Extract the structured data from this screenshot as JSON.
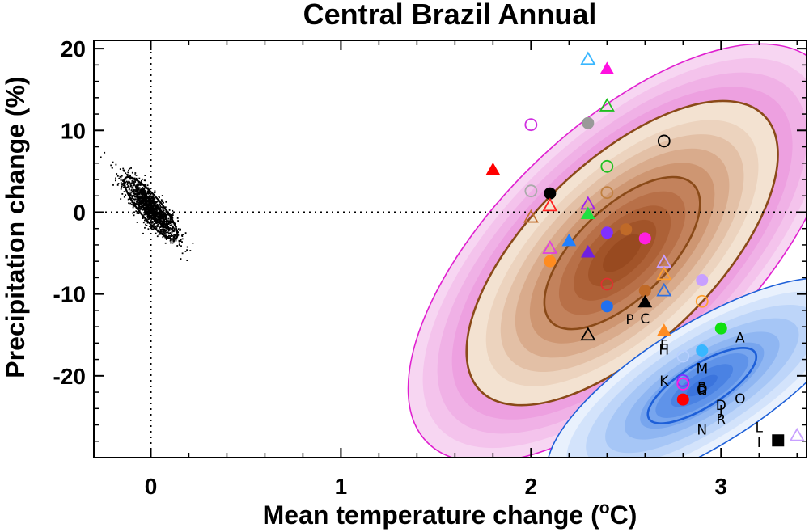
{
  "chart_data": {
    "type": "scatter",
    "title": "Central Brazil Annual",
    "xlabel_main": "Mean temperature change (",
    "xlabel_sup": "o",
    "xlabel_tail": "C)",
    "ylabel": "Precipitation change (%)",
    "xlim": [
      -0.3,
      3.45
    ],
    "ylim": [
      -30,
      21
    ],
    "xticks": [
      0,
      1,
      2,
      3
    ],
    "yticks": [
      20,
      10,
      0,
      -10,
      -20
    ],
    "reference_lines": {
      "x": 0,
      "y": 0,
      "style": "dotted"
    },
    "natural_variability": {
      "name": "natural variability cloud",
      "center": [
        0.0,
        0.5
      ],
      "sd_x": 0.07,
      "sd_y": 1.9,
      "correlation": -0.85,
      "n_points": 1400,
      "contours_sigma": [
        1.0,
        2.0
      ]
    },
    "distributions": [
      {
        "name": "CMIP3 (brown, magenta outer)",
        "center": [
          2.48,
          -5.0
        ],
        "semi_major": 0.65,
        "semi_minor": 0.3,
        "angle_deg": -44,
        "fill_scales": [
          2.2,
          2.05,
          1.9,
          1.75,
          1.6,
          1.4,
          1.25,
          1.1,
          0.95,
          0.8,
          0.65,
          0.5,
          0.35,
          0.2
        ],
        "fill_colors": [
          "#f7d6f2",
          "#f4c3ec",
          "#f0b1e6",
          "#eda0e0",
          "#f3e2d1",
          "#ecd3be",
          "#e3c0a6",
          "#d9ab8c",
          "#ce9672",
          "#c3825c",
          "#b87048",
          "#ad6137",
          "#a25429",
          "#984a20"
        ],
        "contour_colors": [
          "#e020d0",
          "#8a4a18",
          "#8a4a18"
        ],
        "contour_scales": [
          2.2,
          1.6,
          0.8
        ]
      },
      {
        "name": "CMIP5 (blue)",
        "center": [
          2.9,
          -21.2
        ],
        "semi_major": 0.47,
        "semi_minor": 0.16,
        "angle_deg": -32,
        "fill_scales": [
          2.0,
          1.75,
          1.5,
          1.25,
          1.0,
          0.8,
          0.6,
          0.4,
          0.2
        ],
        "fill_colors": [
          "#e9f1fd",
          "#d3e3fb",
          "#bdd5f9",
          "#a6c6f6",
          "#8fb6f2",
          "#77a5ee",
          "#5f93e9",
          "#4a82e3",
          "#3b74dd"
        ],
        "contour_colors": [
          "#1d5fd8",
          "#1d5fd8"
        ],
        "contour_scales": [
          2.0,
          0.7
        ]
      }
    ],
    "markers": [
      {
        "x": 2.3,
        "y": 18.7,
        "shape": "triangle",
        "fill": "none",
        "color": "#38b6ff"
      },
      {
        "x": 2.4,
        "y": 17.5,
        "shape": "triangle",
        "fill": "#ff10e0",
        "color": "#ff10e0"
      },
      {
        "x": 2.4,
        "y": 13.0,
        "shape": "triangle",
        "fill": "none",
        "color": "#20c020"
      },
      {
        "x": 2.3,
        "y": 10.9,
        "shape": "circle",
        "fill": "#999999",
        "color": "#999999"
      },
      {
        "x": 2.0,
        "y": 10.7,
        "shape": "circle",
        "fill": "none",
        "color": "#d030e0"
      },
      {
        "x": 2.7,
        "y": 8.7,
        "shape": "circle",
        "fill": "none",
        "color": "#000000"
      },
      {
        "x": 2.4,
        "y": 5.6,
        "shape": "circle",
        "fill": "none",
        "color": "#20c020"
      },
      {
        "x": 1.8,
        "y": 5.2,
        "shape": "triangle",
        "fill": "#ff0000",
        "color": "#ff0000"
      },
      {
        "x": 2.0,
        "y": 2.6,
        "shape": "circle",
        "fill": "none",
        "color": "#aaaaaa"
      },
      {
        "x": 2.1,
        "y": 2.3,
        "shape": "circle",
        "fill": "#000000",
        "color": "#000000"
      },
      {
        "x": 2.4,
        "y": 2.4,
        "shape": "circle",
        "fill": "none",
        "color": "#c08040"
      },
      {
        "x": 2.1,
        "y": 0.8,
        "shape": "triangle",
        "fill": "none",
        "color": "#ff2020"
      },
      {
        "x": 2.3,
        "y": 1.0,
        "shape": "triangle",
        "fill": "none",
        "color": "#a020f0"
      },
      {
        "x": 2.0,
        "y": -0.6,
        "shape": "triangle",
        "fill": "none",
        "color": "#c07030"
      },
      {
        "x": 2.3,
        "y": -0.2,
        "shape": "triangle",
        "fill": "#20e040",
        "color": "#20e040"
      },
      {
        "x": 2.4,
        "y": -2.5,
        "shape": "circle",
        "fill": "#8030ff",
        "color": "#8030ff"
      },
      {
        "x": 2.5,
        "y": -2.1,
        "shape": "circle",
        "fill": "#c06a28",
        "color": "#c06a28"
      },
      {
        "x": 2.6,
        "y": -3.2,
        "shape": "circle",
        "fill": "#ff20e0",
        "color": "#ff20e0"
      },
      {
        "x": 2.2,
        "y": -3.5,
        "shape": "triangle",
        "fill": "#2080ff",
        "color": "#2080ff"
      },
      {
        "x": 2.1,
        "y": -4.4,
        "shape": "triangle",
        "fill": "none",
        "color": "#e040e0"
      },
      {
        "x": 2.3,
        "y": -4.9,
        "shape": "triangle",
        "fill": "#7020e0",
        "color": "#7020e0"
      },
      {
        "x": 2.1,
        "y": -6.0,
        "shape": "circle",
        "fill": "#ff8c20",
        "color": "#ff8c20"
      },
      {
        "x": 2.7,
        "y": -6.1,
        "shape": "triangle",
        "fill": "none",
        "color": "#c8a0ff"
      },
      {
        "x": 2.7,
        "y": -7.6,
        "shape": "triangle",
        "fill": "none",
        "color": "#ffa030"
      },
      {
        "x": 2.9,
        "y": -8.3,
        "shape": "circle",
        "fill": "#c8a0ff",
        "color": "#c8a0ff"
      },
      {
        "x": 2.4,
        "y": -8.8,
        "shape": "circle",
        "fill": "none",
        "color": "#e03030"
      },
      {
        "x": 2.7,
        "y": -9.6,
        "shape": "triangle",
        "fill": "none",
        "color": "#3070e0"
      },
      {
        "x": 2.6,
        "y": -9.6,
        "shape": "circle",
        "fill": "#c06a28",
        "color": "#c06a28"
      },
      {
        "x": 2.9,
        "y": -10.9,
        "shape": "circle",
        "fill": "none",
        "color": "#ffa030"
      },
      {
        "x": 2.6,
        "y": -11.0,
        "shape": "triangle",
        "fill": "#000000",
        "color": "#000000"
      },
      {
        "x": 2.4,
        "y": -11.5,
        "shape": "circle",
        "fill": "#2070f0",
        "color": "#2070f0"
      },
      {
        "x": 3.0,
        "y": -14.2,
        "shape": "circle",
        "fill": "#10e010",
        "color": "#10e010"
      },
      {
        "x": 2.7,
        "y": -14.5,
        "shape": "triangle",
        "fill": "#ff8c20",
        "color": "#ff8c20"
      },
      {
        "x": 2.3,
        "y": -15.0,
        "shape": "triangle",
        "fill": "none",
        "color": "#000000"
      },
      {
        "x": 2.9,
        "y": -16.9,
        "shape": "circle",
        "fill": "#38b6ff",
        "color": "#38b6ff"
      },
      {
        "x": 2.8,
        "y": -17.6,
        "shape": "circle",
        "fill": "none",
        "color": "#b8d0ff"
      },
      {
        "x": 2.8,
        "y": -20.6,
        "shape": "circle",
        "fill": "none",
        "color": "#8030ff"
      },
      {
        "x": 2.8,
        "y": -21.0,
        "shape": "circle",
        "fill": "none",
        "color": "#ff20e0"
      },
      {
        "x": 2.8,
        "y": -22.9,
        "shape": "circle",
        "fill": "#ff0000",
        "color": "#ff0000"
      },
      {
        "x": 3.3,
        "y": -27.9,
        "shape": "square",
        "fill": "#000000",
        "color": "#000000"
      },
      {
        "x": 3.4,
        "y": -27.3,
        "shape": "triangle",
        "fill": "none",
        "color": "#c8a0ff"
      }
    ],
    "letter_labels": [
      {
        "x": 2.52,
        "y": -13.1,
        "text": "P"
      },
      {
        "x": 2.6,
        "y": -13.0,
        "text": "C"
      },
      {
        "x": 3.1,
        "y": -15.3,
        "text": "A"
      },
      {
        "x": 2.7,
        "y": -16.2,
        "text": "F"
      },
      {
        "x": 2.7,
        "y": -16.8,
        "text": "H"
      },
      {
        "x": 2.9,
        "y": -19.1,
        "text": "M"
      },
      {
        "x": 2.7,
        "y": -20.6,
        "text": "K"
      },
      {
        "x": 2.9,
        "y": -21.4,
        "text": "B"
      },
      {
        "x": 2.9,
        "y": -21.8,
        "text": "G"
      },
      {
        "x": 2.9,
        "y": -21.6,
        "text": "Q"
      },
      {
        "x": 3.0,
        "y": -23.6,
        "text": "D"
      },
      {
        "x": 3.0,
        "y": -24.2,
        "text": "J"
      },
      {
        "x": 3.1,
        "y": -22.8,
        "text": "O"
      },
      {
        "x": 3.0,
        "y": -25.3,
        "text": "R"
      },
      {
        "x": 2.9,
        "y": -26.6,
        "text": "N"
      },
      {
        "x": 3.2,
        "y": -26.3,
        "text": "L"
      },
      {
        "x": 3.2,
        "y": -28.1,
        "text": "I"
      }
    ]
  }
}
